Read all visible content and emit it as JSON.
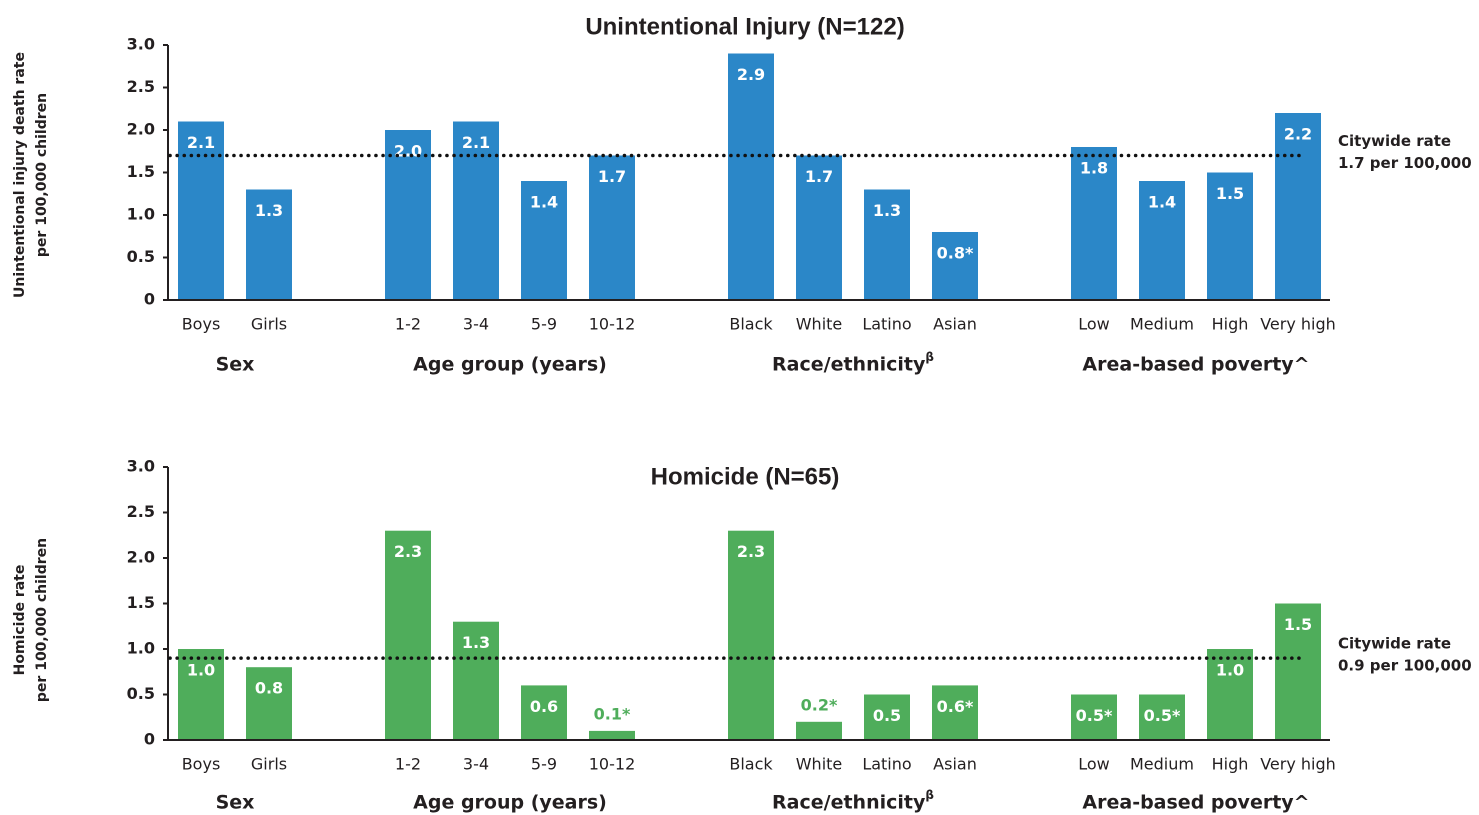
{
  "chart_data": [
    {
      "type": "bar",
      "title": "Unintentional Injury (N=122)",
      "y_label": [
        "Unintentional injury death rate",
        "per 100,000 children"
      ],
      "color": "#2b87c8",
      "ylim": [
        0,
        3
      ],
      "yticks": [
        0,
        0.5,
        {
          "value": 1,
          "label": "1.0"
        },
        1.5,
        {
          "value": 2,
          "label": "2.0"
        },
        2.5,
        {
          "value": 3,
          "label": "3.0"
        }
      ],
      "groups": [
        {
          "label": "Sex",
          "categories": [
            "Boys",
            "Girls"
          ],
          "values": [
            2.1,
            1.3
          ],
          "value_labels": [
            "2.1",
            "1.3"
          ]
        },
        {
          "label": "Age group (years)",
          "categories": [
            "1-2",
            "3-4",
            "5-9",
            "10-12"
          ],
          "values": [
            2.0,
            2.1,
            1.4,
            1.7
          ],
          "value_labels": [
            "2.0",
            "2.1",
            "1.4",
            "1.7"
          ]
        },
        {
          "label": "Race/ethnicity",
          "superscript": "β",
          "categories": [
            "Black",
            "White",
            "Latino",
            "Asian"
          ],
          "values": [
            2.9,
            1.7,
            1.3,
            0.8
          ],
          "value_labels": [
            "2.9",
            "1.7",
            "1.3",
            "0.8*"
          ]
        },
        {
          "label": "Area-based poverty^",
          "categories": [
            "Low",
            "Medium",
            "High",
            "Very high"
          ],
          "values": [
            1.8,
            1.4,
            1.5,
            2.2
          ],
          "value_labels": [
            "1.8",
            "1.4",
            "1.5",
            "2.2"
          ]
        }
      ],
      "reference_line": {
        "value": 1.7,
        "label": [
          "Citywide rate",
          "1.7 per 100,000"
        ]
      }
    },
    {
      "type": "bar",
      "title": "Homicide (N=65)",
      "y_label": [
        "Homicide rate",
        "per 100,000 children"
      ],
      "color": "#4fad5b",
      "ylim": [
        0,
        3
      ],
      "yticks": [
        0,
        0.5,
        {
          "value": 1,
          "label": "1.0"
        },
        1.5,
        {
          "value": 2,
          "label": "2.0"
        },
        2.5,
        {
          "value": 3,
          "label": "3.0"
        }
      ],
      "groups": [
        {
          "label": "Sex",
          "categories": [
            "Boys",
            "Girls"
          ],
          "values": [
            1.0,
            0.8
          ],
          "value_labels": [
            "1.0",
            "0.8"
          ]
        },
        {
          "label": "Age group (years)",
          "categories": [
            "1-2",
            "3-4",
            "5-9",
            "10-12"
          ],
          "values": [
            2.3,
            1.3,
            0.6,
            0.1
          ],
          "value_labels": [
            "2.3",
            "1.3",
            "0.6",
            "0.1*"
          ]
        },
        {
          "label": "Race/ethnicity",
          "superscript": "β",
          "categories": [
            "Black",
            "White",
            "Latino",
            "Asian"
          ],
          "values": [
            2.3,
            0.2,
            0.5,
            0.6
          ],
          "value_labels": [
            "2.3",
            "0.2*",
            "0.5",
            "0.6*"
          ]
        },
        {
          "label": "Area-based poverty^",
          "categories": [
            "Low",
            "Medium",
            "High",
            "Very high"
          ],
          "values": [
            0.5,
            0.5,
            1.0,
            1.5
          ],
          "value_labels": [
            "0.5*",
            "0.5*",
            "1.0",
            "1.5"
          ]
        }
      ],
      "reference_line": {
        "value": 0.9,
        "label": [
          "Citywide rate",
          "0.9 per 100,000"
        ]
      }
    }
  ]
}
